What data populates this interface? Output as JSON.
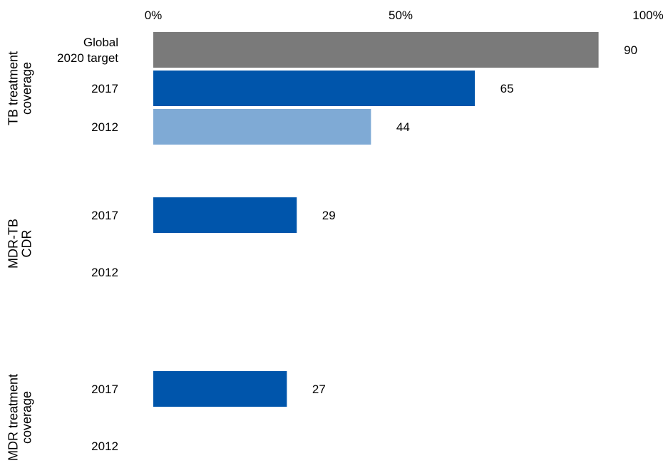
{
  "chart_data": {
    "type": "bar",
    "orientation": "horizontal",
    "xlim": [
      0,
      100
    ],
    "x_ticks": [
      "0%",
      "50%",
      "100%"
    ],
    "groups": [
      {
        "label_lines": [
          "TB treatment",
          "coverage"
        ],
        "bars": [
          {
            "category_lines": [
              "Global",
              "2020 target"
            ],
            "value": 90,
            "label": "90",
            "color": "#7a7a7a"
          },
          {
            "category_lines": [
              "2017"
            ],
            "value": 65,
            "label": "65",
            "color": "#0055ab"
          },
          {
            "category_lines": [
              "2012"
            ],
            "value": 44,
            "label": "44",
            "color": "#7faad5"
          }
        ]
      },
      {
        "label_lines": [
          "MDR-TB",
          "CDR"
        ],
        "bars": [
          {
            "category_lines": [
              "2017"
            ],
            "value": 29,
            "label": "29",
            "color": "#0055ab"
          },
          {
            "category_lines": [
              "2012"
            ],
            "value": null,
            "label": "",
            "color": "#0055ab"
          }
        ]
      },
      {
        "label_lines": [
          "MDR treatment",
          "coverage"
        ],
        "bars": [
          {
            "category_lines": [
              "2017"
            ],
            "value": 27,
            "label": "27",
            "color": "#0055ab"
          },
          {
            "category_lines": [
              "2012"
            ],
            "value": null,
            "label": "",
            "color": "#0055ab"
          }
        ]
      }
    ]
  }
}
